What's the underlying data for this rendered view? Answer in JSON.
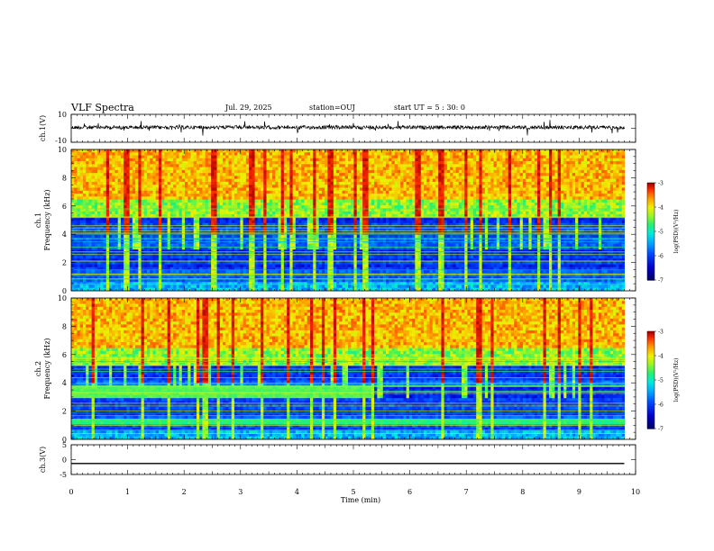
{
  "header": {
    "title": "VLF Spectra",
    "date": "Jul. 29, 2025",
    "station": "station=OUJ",
    "start_time": "start UT =  5 : 30: 0"
  },
  "chart_data": [
    {
      "type": "line",
      "name": "ch1-waveform",
      "ylabel": "ch.1(V)",
      "ylim": [
        -10,
        10
      ],
      "y_ticks": [
        "10",
        "-10"
      ],
      "baseline": 0,
      "xlim": [
        0,
        10
      ],
      "color": "#000000"
    },
    {
      "type": "heatmap",
      "name": "ch1-spectrogram",
      "ylabel_line1": "ch.1",
      "ylabel_line2": "Frequency (kHz)",
      "ylim": [
        0,
        10
      ],
      "y_ticks": [
        "0",
        "2",
        "4",
        "6",
        "8",
        "10"
      ],
      "xlim": [
        0,
        9.8
      ],
      "colorbar": {
        "label": "log(PSD)(V²/Hz)",
        "range": [
          -7,
          -3
        ],
        "ticks": [
          "-3",
          "-4",
          "-5",
          "-6",
          "-7"
        ]
      }
    },
    {
      "type": "heatmap",
      "name": "ch2-spectrogram",
      "ylabel_line1": "ch.2",
      "ylabel_line2": "Frequency (kHz)",
      "ylim": [
        0,
        10
      ],
      "y_ticks": [
        "0",
        "2",
        "4",
        "6",
        "8",
        "10"
      ],
      "xlim": [
        0,
        9.8
      ],
      "colorbar": {
        "label": "log(PSD)(V²/Hz)",
        "range": [
          -7,
          -3
        ],
        "ticks": [
          "-3",
          "-4",
          "-5",
          "-6",
          "-7"
        ]
      }
    },
    {
      "type": "line",
      "name": "ch3-waveform",
      "ylabel": "ch.3(V)",
      "ylim": [
        -5,
        5
      ],
      "y_ticks": [
        "5",
        "0",
        "-5"
      ],
      "x": [
        0,
        9.8
      ],
      "y": [
        -1.3,
        -1.3
      ],
      "color": "#000000"
    }
  ],
  "x_axis": {
    "label": "Time (min)",
    "range": [
      0,
      10
    ],
    "ticks": [
      "0",
      "1",
      "2",
      "3",
      "4",
      "5",
      "6",
      "7",
      "8",
      "9",
      "10"
    ]
  }
}
